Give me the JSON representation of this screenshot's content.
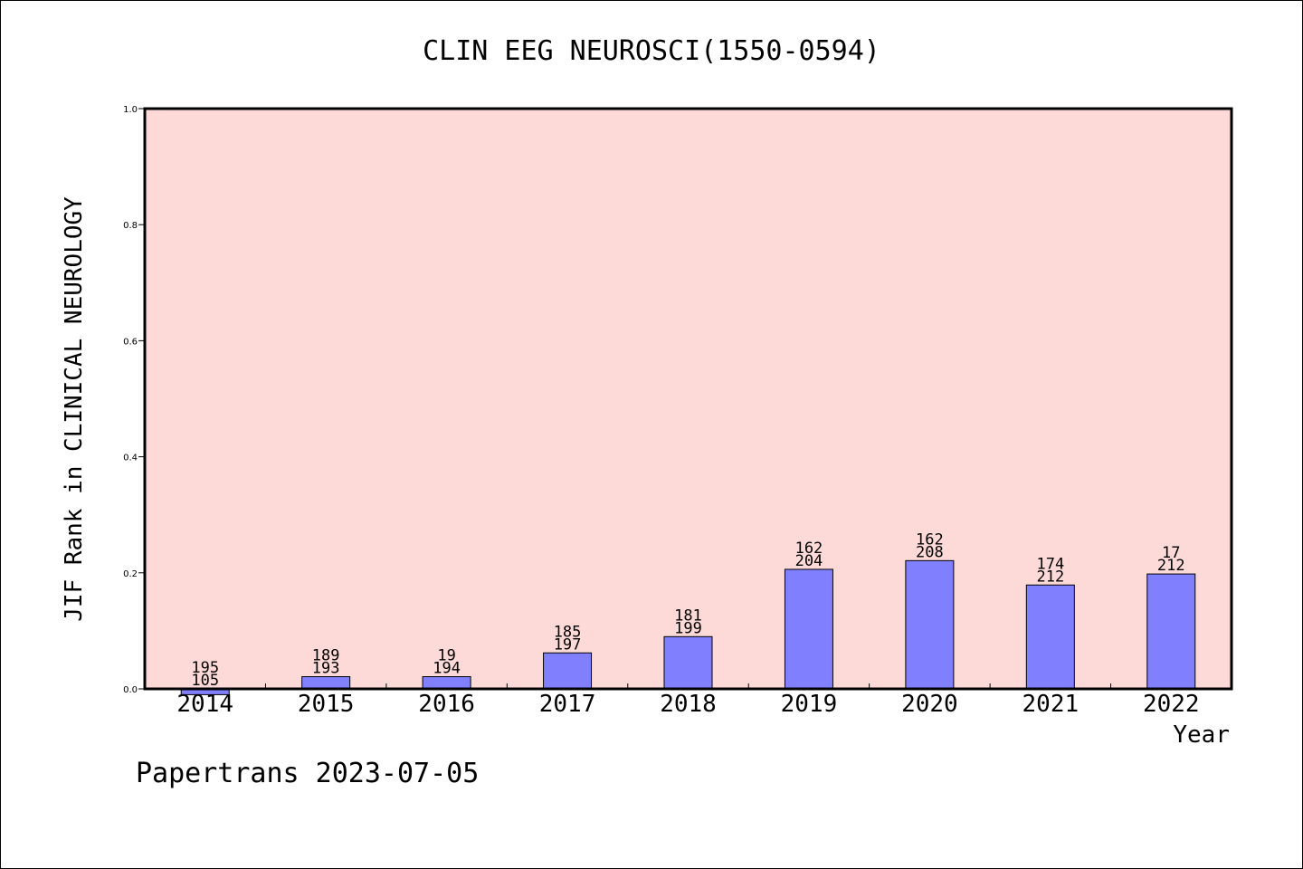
{
  "chart_data": {
    "type": "bar",
    "title": "CLIN EEG NEUROSCI(1550-0594)",
    "ylabel": "JIF Rank in CLINICAL NEUROLOGY",
    "xlabel": "Year",
    "ylim": [
      0.0,
      1.0
    ],
    "yticks": [
      "0.0",
      "0.2",
      "0.4",
      "0.6",
      "0.8",
      "1.0"
    ],
    "categories": [
      "2014",
      "2015",
      "2016",
      "2017",
      "2018",
      "2019",
      "2020",
      "2021",
      "2022"
    ],
    "values": [
      -0.01,
      0.021,
      0.021,
      0.062,
      0.09,
      0.206,
      0.221,
      0.179,
      0.198
    ],
    "label_top": [
      "195",
      "189",
      "19",
      "185",
      "181",
      "162",
      "162",
      "174",
      "17"
    ],
    "label_bottom": [
      "105",
      "193",
      "194",
      "197",
      "199",
      "204",
      "208",
      "212",
      "212"
    ],
    "colors": {
      "plot_bg": "#fddad7",
      "bar": "#8080ff"
    }
  },
  "footer": "Papertrans 2023-07-05"
}
